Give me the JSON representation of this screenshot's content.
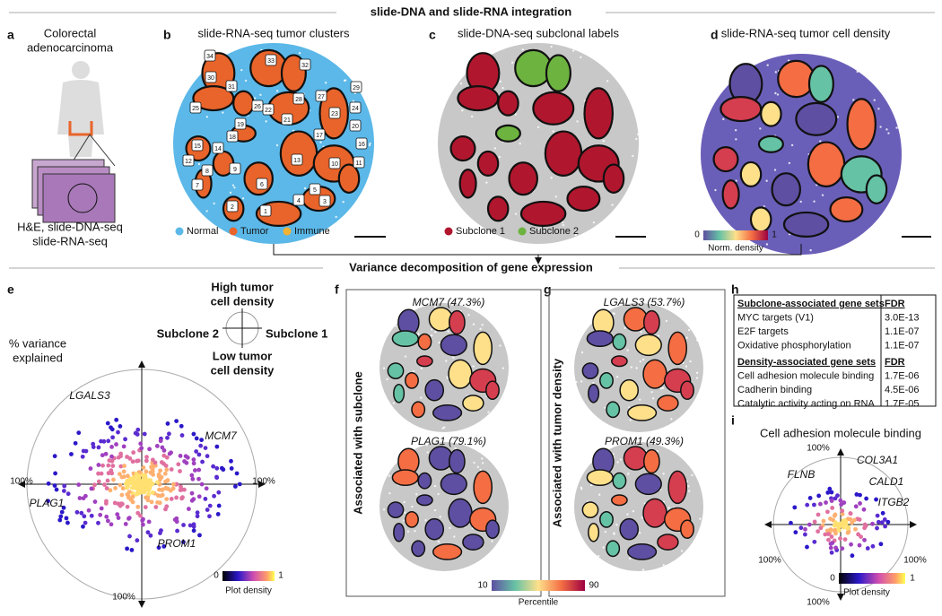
{
  "title": "slide-DNA and slide-RNA integration",
  "section_title": "Variance decomposition of gene expression",
  "panel_a": {
    "label": "a",
    "lines": [
      "Colorectal",
      "adenocarcinoma"
    ],
    "caption": [
      "H&E, slide-DNA-seq",
      "slide-RNA-seq"
    ]
  },
  "panel_b": {
    "label": "b",
    "title": "slide-RNA-seq tumor clusters",
    "clusters": [
      "1",
      "2",
      "3",
      "4",
      "5",
      "6",
      "7",
      "8",
      "9",
      "10",
      "11",
      "12",
      "13",
      "14",
      "15",
      "16",
      "17",
      "18",
      "19",
      "20",
      "21",
      "22",
      "23",
      "24",
      "25",
      "26",
      "27",
      "28",
      "29",
      "30",
      "31",
      "32",
      "33",
      "34"
    ],
    "legend": [
      {
        "name": "Normal",
        "color": "#5bb8e8"
      },
      {
        "name": "Tumor",
        "color": "#e8642a"
      },
      {
        "name": "Immune",
        "color": "#f2b233"
      }
    ]
  },
  "panel_c": {
    "label": "c",
    "title": "slide-DNA-seq subclonal labels",
    "legend": [
      {
        "name": "Subclone 1",
        "color": "#b0172e"
      },
      {
        "name": "Subclone 2",
        "color": "#6db33f"
      }
    ]
  },
  "panel_d": {
    "label": "d",
    "title": "slide-RNA-seq tumor cell density",
    "cbar_min": "0",
    "cbar_max": "1",
    "cbar_label": "Norm. density"
  },
  "panel_e": {
    "label": "e",
    "compass_top": [
      "High tumor",
      "cell density"
    ],
    "compass_left": "Subclone 2",
    "compass_right": "Subclone 1",
    "compass_bottom": [
      "Low tumor",
      "cell density"
    ],
    "axis_label": [
      "% variance",
      "explained"
    ],
    "genes": [
      "LGALS3",
      "MCM7",
      "PLAG1",
      "PROM1"
    ],
    "pct": [
      "100%",
      "100%",
      "100%"
    ],
    "cbar_min": "0",
    "cbar_max": "1",
    "cbar_label": "Plot density"
  },
  "panel_f": {
    "label": "f",
    "side": "Associated with subclone",
    "titles": [
      "MCM7 (47.3%)",
      "PLAG1 (79.1%)"
    ]
  },
  "panel_g": {
    "label": "g",
    "side": "Associated with tumor density",
    "titles": [
      "LGALS3 (53.7%)",
      "PROM1 (49.3%)"
    ]
  },
  "percentile_bar": {
    "min": "10",
    "max": "90",
    "label": "Percentile"
  },
  "panel_h": {
    "label": "h",
    "sections": [
      {
        "header": [
          "Subclone-associated gene sets",
          "FDR"
        ],
        "rows": [
          [
            "MYC targets (V1)",
            "3.0E-13"
          ],
          [
            "E2F targets",
            "1.1E-07"
          ],
          [
            "Oxidative phosphorylation",
            "1.1E-07"
          ]
        ]
      },
      {
        "header": [
          "Density-associated gene sets",
          "FDR"
        ],
        "rows": [
          [
            "Cell adhesion molecule binding",
            "1.7E-06"
          ],
          [
            "Cadherin binding",
            "4.5E-06"
          ],
          [
            "Catalytic activity acting on RNA",
            "1.7E-05"
          ]
        ]
      }
    ]
  },
  "panel_i": {
    "label": "i",
    "title": "Cell adhesion molecule binding",
    "genes": [
      "FLNB",
      "COL3A1",
      "CALD1",
      "ITGB2"
    ],
    "pct": [
      "100%",
      "100%",
      "100%",
      "100%"
    ],
    "cbar_min": "0",
    "cbar_max": "1",
    "cbar_label": "Plot density"
  }
}
